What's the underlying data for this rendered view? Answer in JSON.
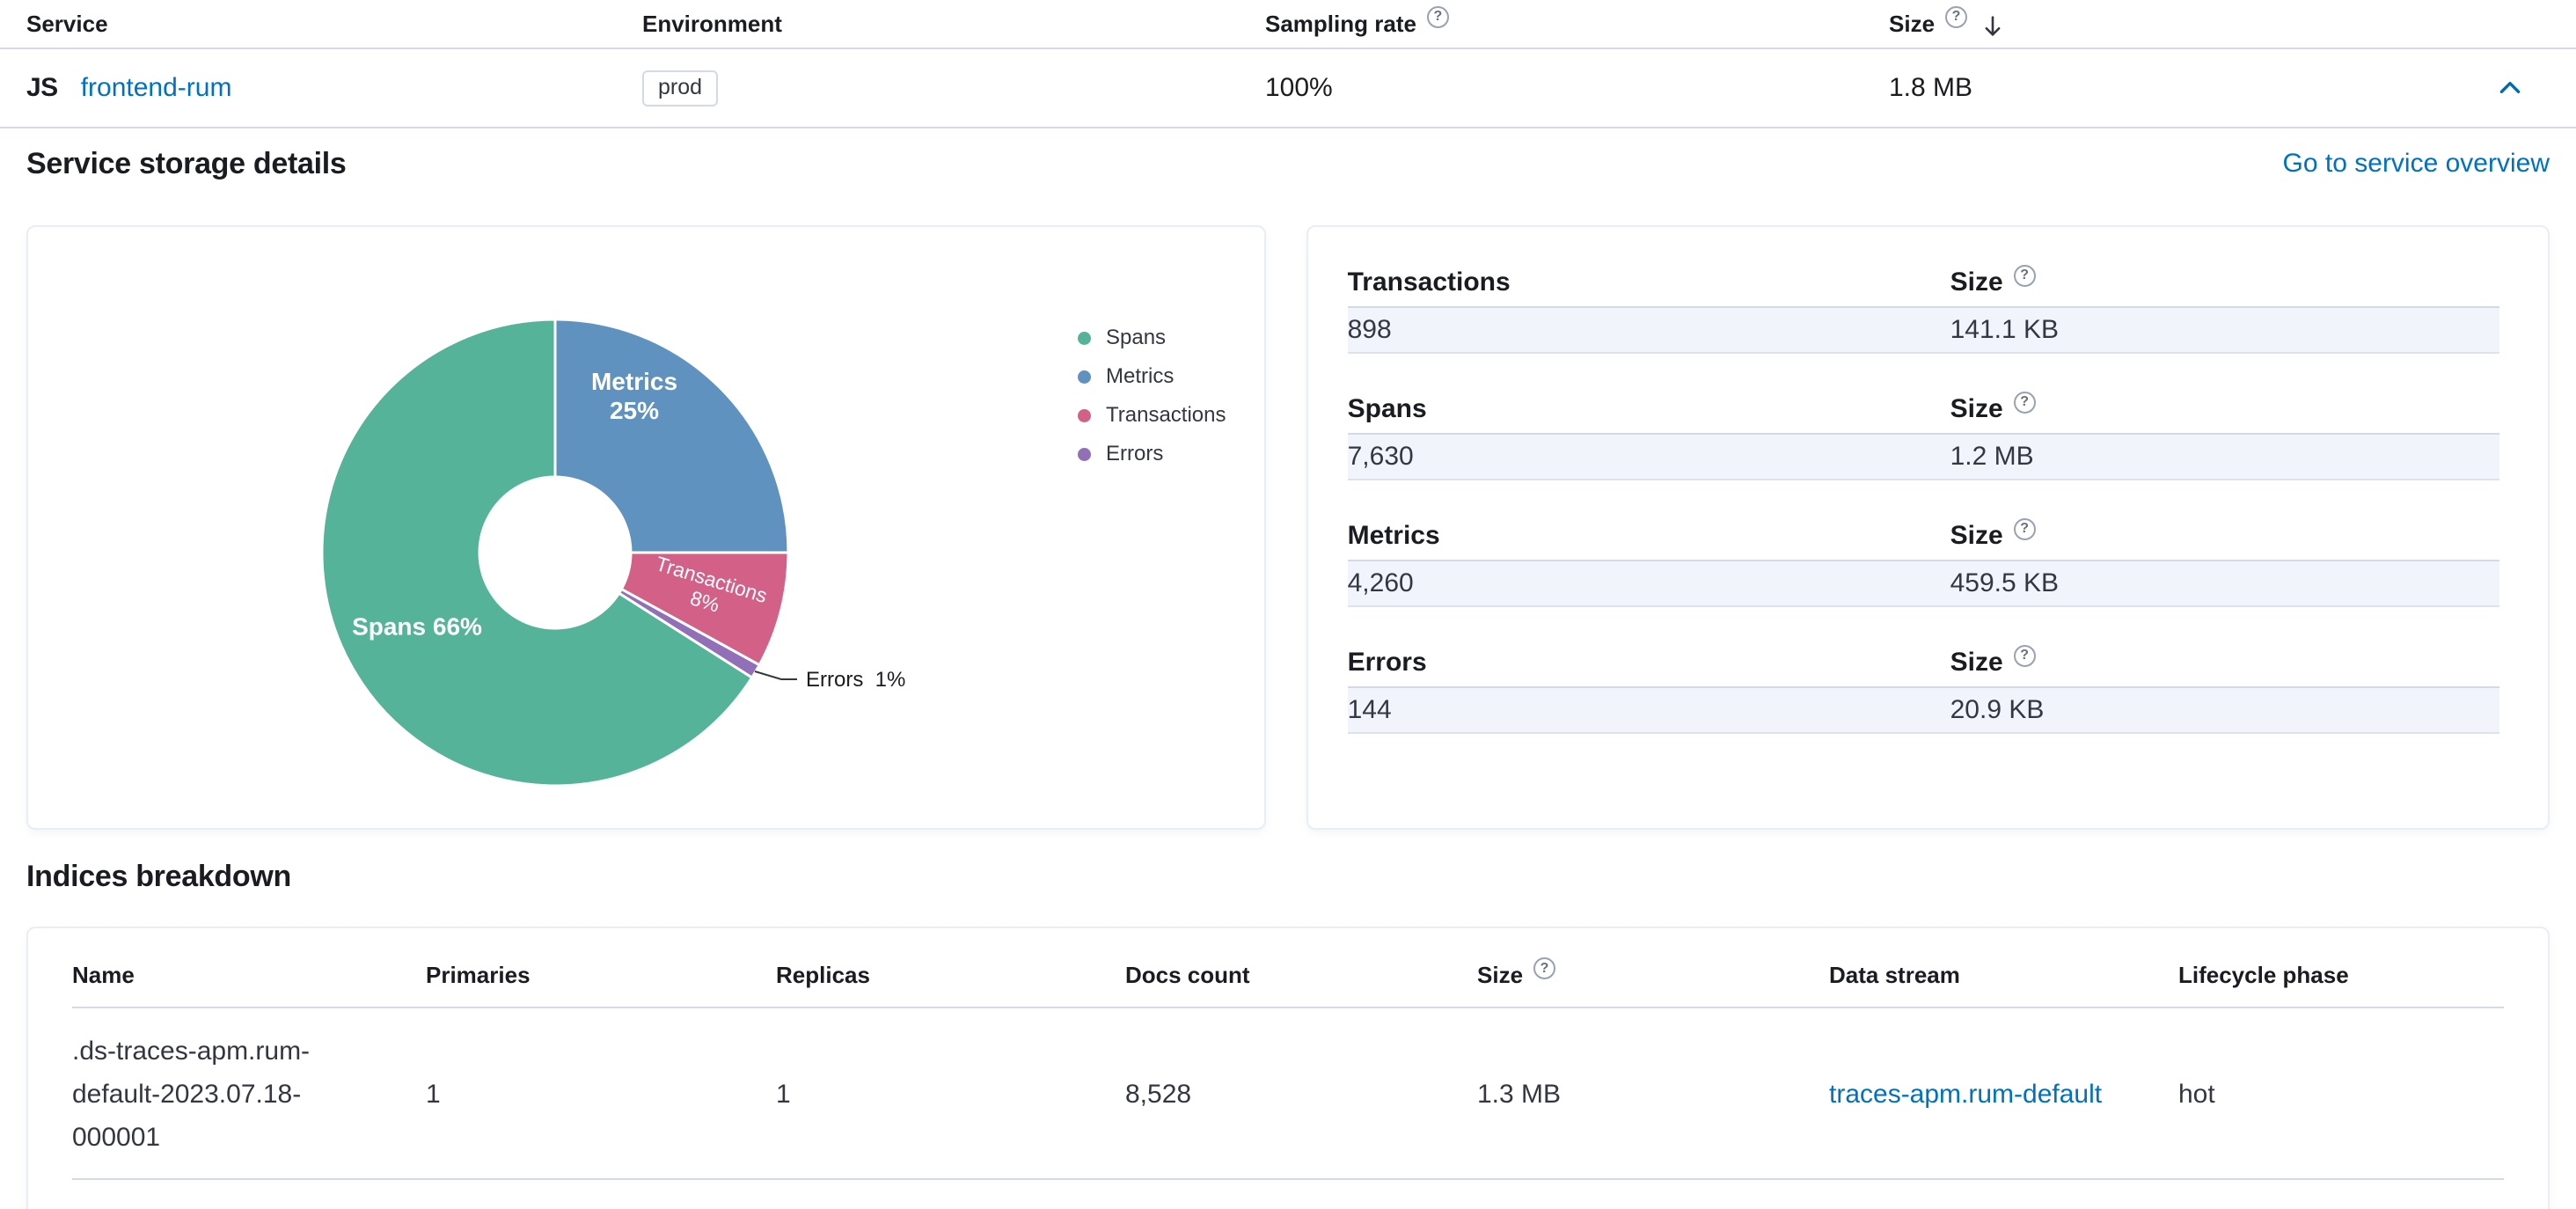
{
  "service_table": {
    "columns": {
      "service": "Service",
      "environment": "Environment",
      "sampling_rate": "Sampling rate",
      "size": "Size"
    },
    "row": {
      "agent": "JS",
      "service_name": "frontend-rum",
      "environment": "prod",
      "sampling_rate": "100%",
      "size": "1.8 MB"
    }
  },
  "storage_details": {
    "title": "Service storage details",
    "overview_link": "Go to service overview",
    "stats": [
      {
        "label": "Transactions",
        "size_label": "Size",
        "count": "898",
        "size": "141.1 KB"
      },
      {
        "label": "Spans",
        "size_label": "Size",
        "count": "7,630",
        "size": "1.2 MB"
      },
      {
        "label": "Metrics",
        "size_label": "Size",
        "count": "4,260",
        "size": "459.5 KB"
      },
      {
        "label": "Errors",
        "size_label": "Size",
        "count": "144",
        "size": "20.9 KB"
      }
    ]
  },
  "chart_data": {
    "type": "pie",
    "donut": true,
    "slices": [
      {
        "name": "Metrics",
        "pct": 25,
        "color": "#6092C0"
      },
      {
        "name": "Transactions",
        "pct": 8,
        "color": "#D36086"
      },
      {
        "name": "Errors",
        "pct": 1,
        "color": "#9170B8"
      },
      {
        "name": "Spans",
        "pct": 66,
        "color": "#54B399"
      }
    ],
    "legend_order": [
      "Spans",
      "Metrics",
      "Transactions",
      "Errors"
    ],
    "legend_position": "right"
  },
  "indices": {
    "title": "Indices breakdown",
    "columns": {
      "name": "Name",
      "primaries": "Primaries",
      "replicas": "Replicas",
      "docs_count": "Docs count",
      "size": "Size",
      "data_stream": "Data stream",
      "lifecycle": "Lifecycle phase"
    },
    "rows": [
      {
        "name": ".ds-traces-apm.rum-default-2023.07.18-000001",
        "primaries": "1",
        "replicas": "1",
        "docs_count": "8,528",
        "size": "1.3 MB",
        "data_stream": "traces-apm.rum-default",
        "lifecycle": "hot"
      }
    ]
  }
}
